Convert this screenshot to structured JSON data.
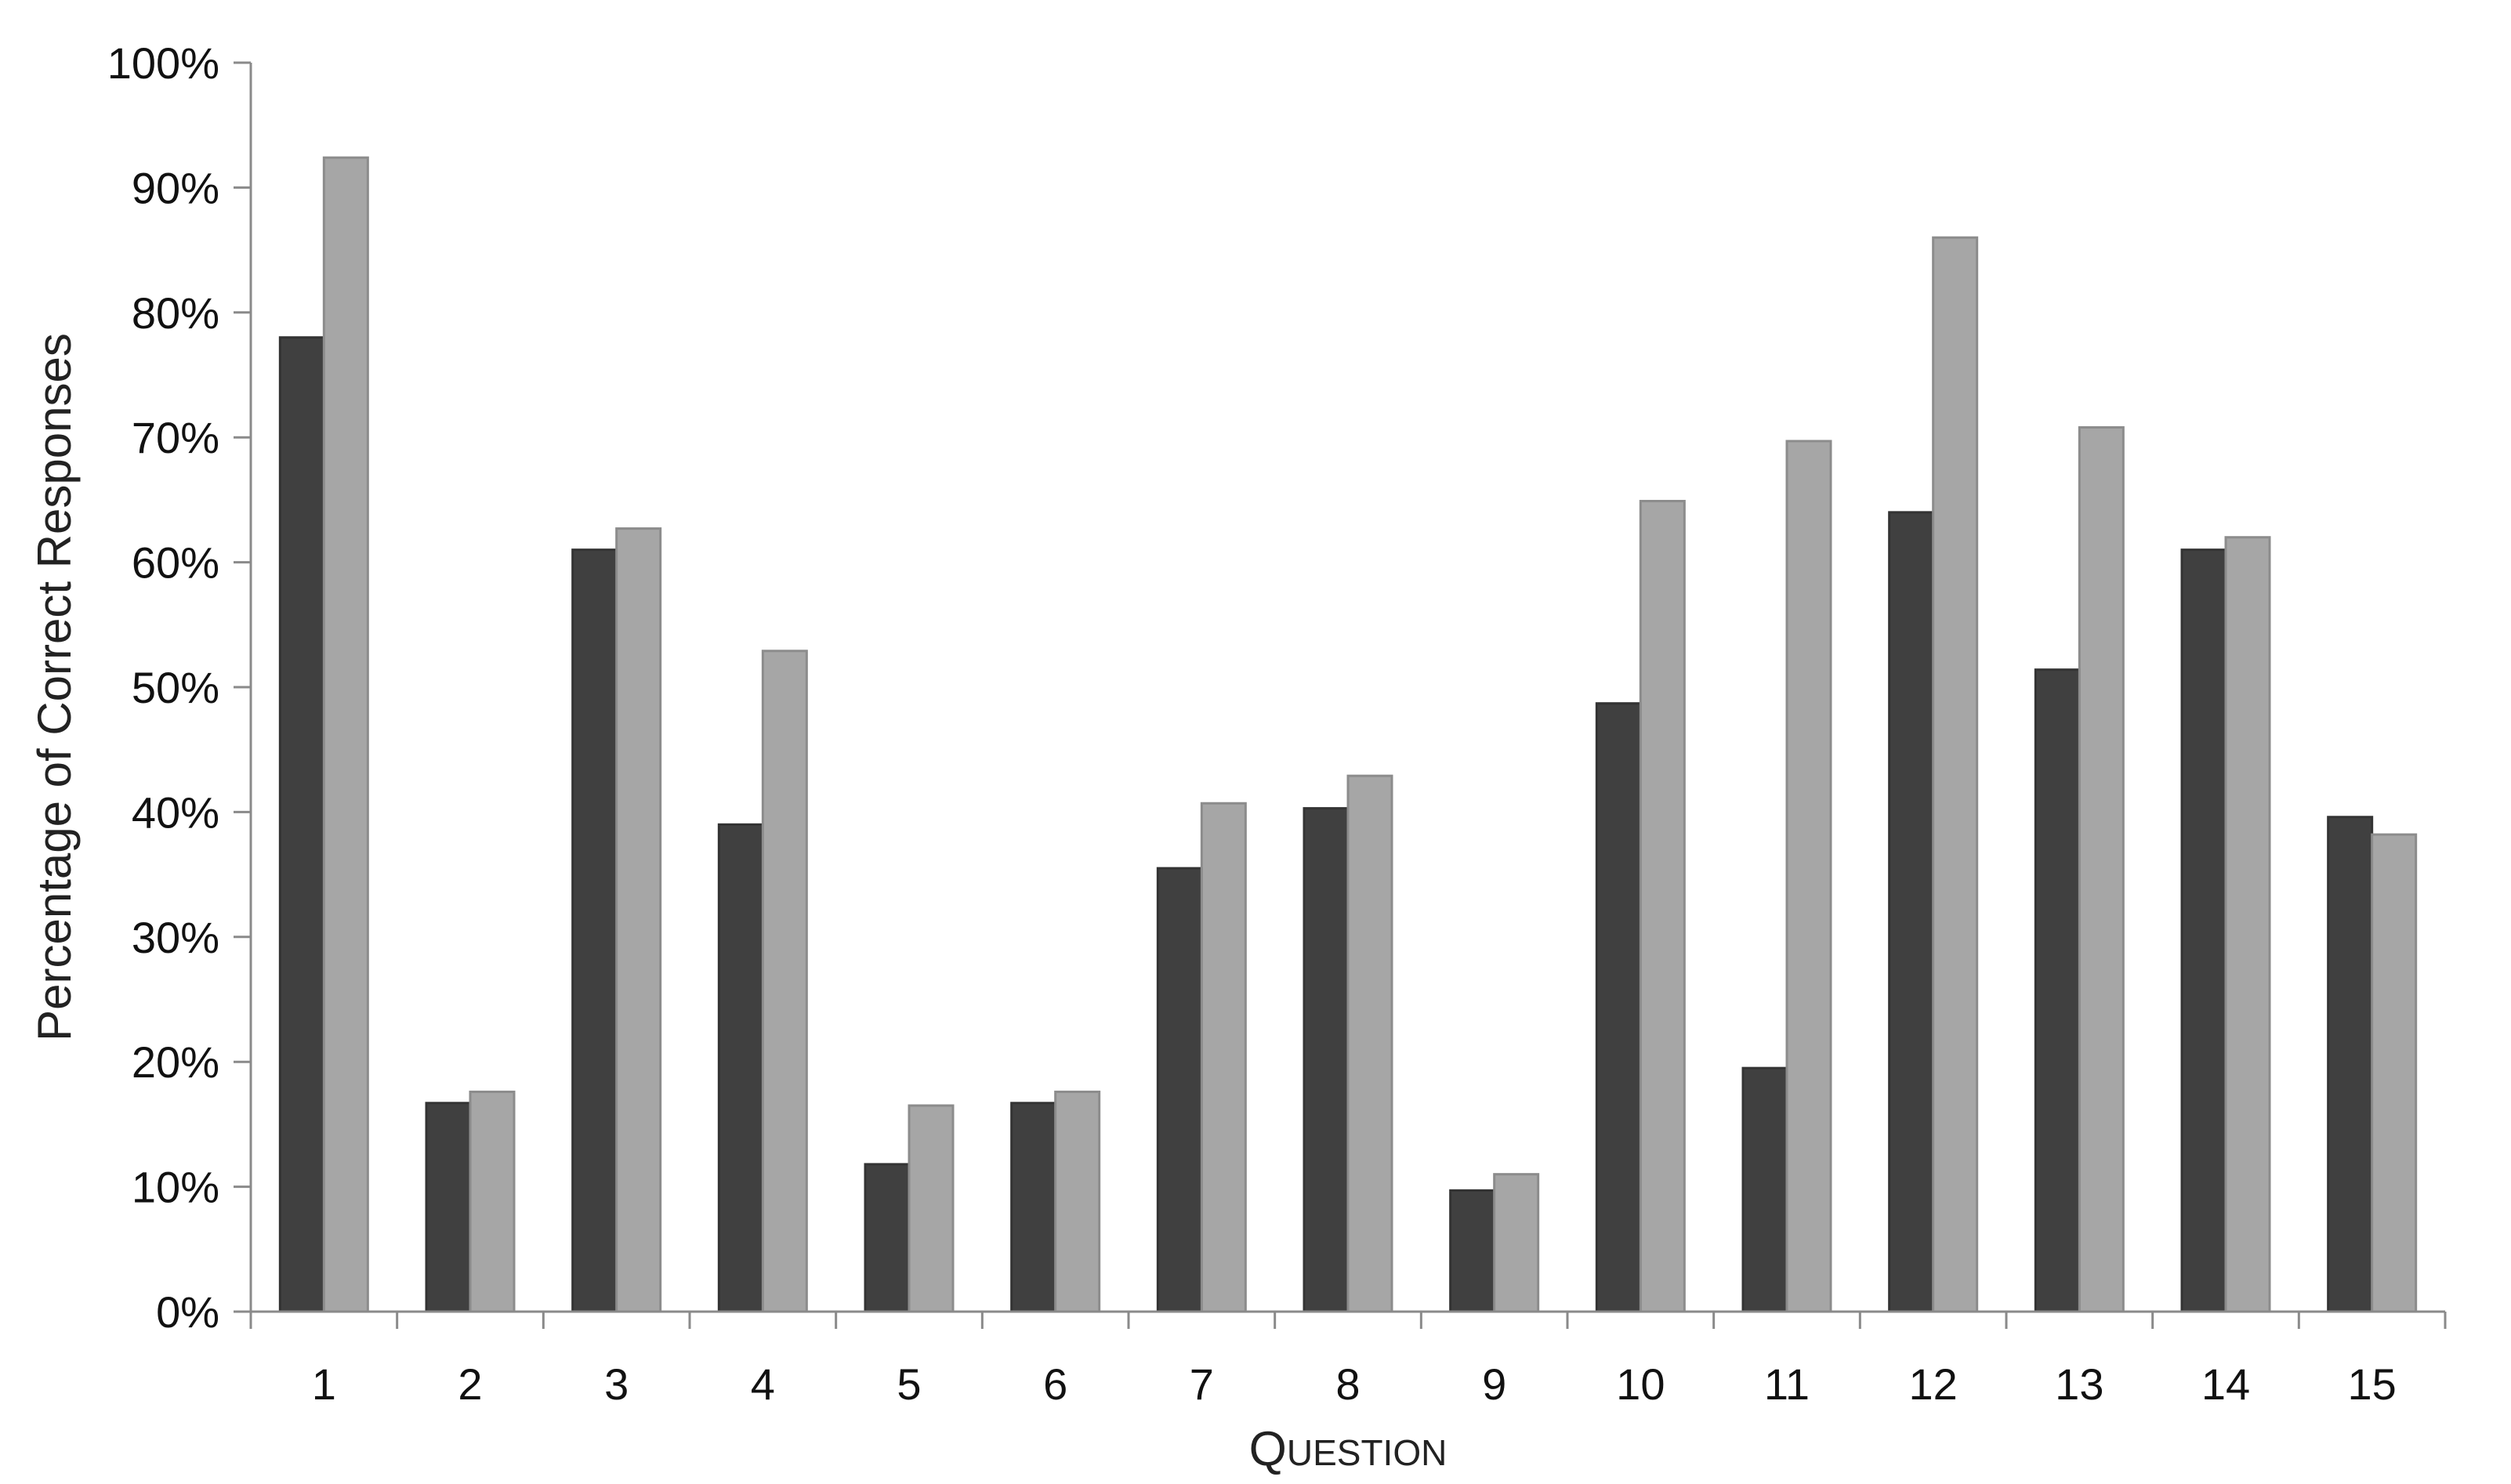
{
  "chart_data": {
    "type": "bar",
    "title": "",
    "xlabel": "Question",
    "ylabel": "Percentage of Correct Responses",
    "categories": [
      "1",
      "2",
      "3",
      "4",
      "5",
      "6",
      "7",
      "8",
      "9",
      "10",
      "11",
      "12",
      "13",
      "14",
      "15"
    ],
    "series": [
      {
        "color": "#404040",
        "values": [
          78,
          16.7,
          61,
          39,
          11.8,
          16.7,
          35.5,
          40.3,
          9.7,
          48.7,
          19.5,
          64,
          51.4,
          61,
          39.6
        ]
      },
      {
        "color": "#a6a6a6",
        "values": [
          92.4,
          17.6,
          62.7,
          52.9,
          16.5,
          17.6,
          40.7,
          42.9,
          11,
          64.9,
          69.7,
          86,
          70.8,
          62,
          38.2
        ]
      }
    ],
    "ylim": [
      0,
      100
    ],
    "yticks": [
      "0%",
      "10%",
      "20%",
      "30%",
      "40%",
      "50%",
      "60%",
      "70%",
      "80%",
      "90%",
      "100%"
    ],
    "grid": false,
    "legend": "none"
  }
}
